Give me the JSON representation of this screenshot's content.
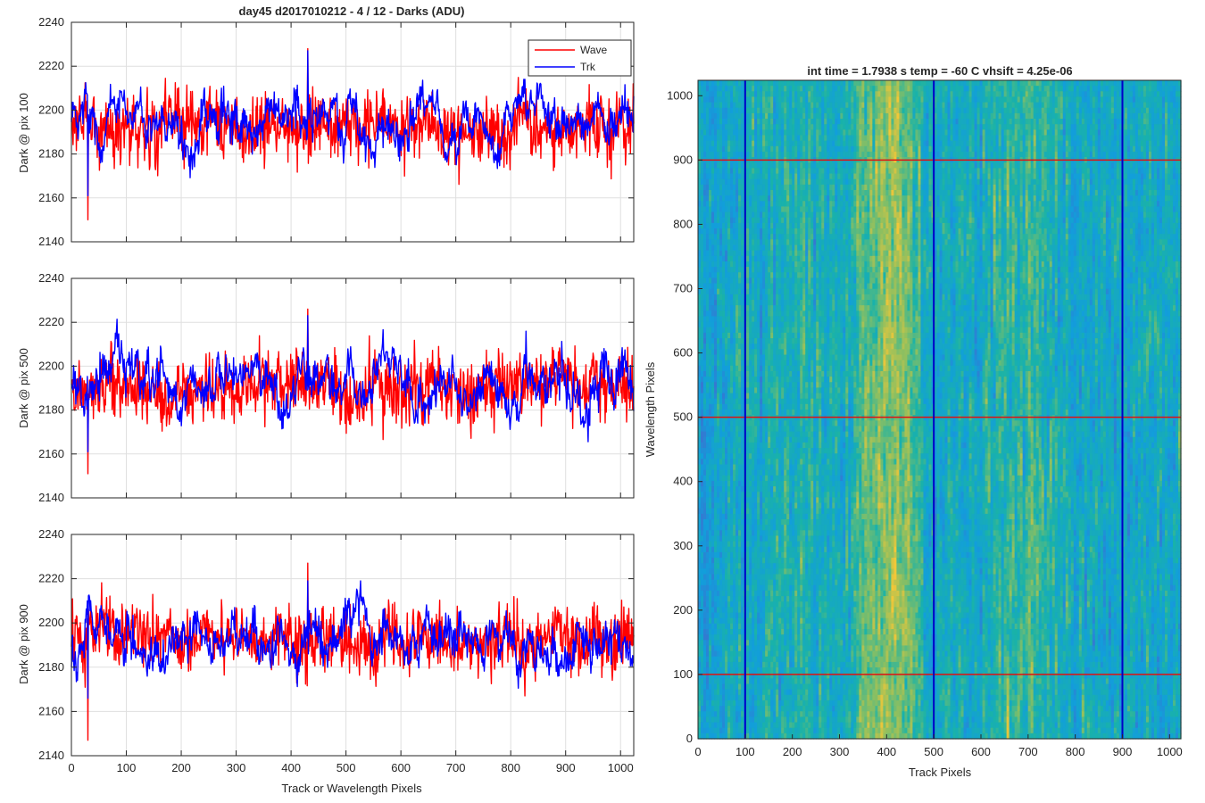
{
  "figure": {
    "title": "day45 d2017010212 - 4 / 12 - Darks (ADU)",
    "colors": {
      "wave": "#ff0000",
      "trk": "#0000ff",
      "axis": "#262626",
      "grid": "#dfdfdf"
    }
  },
  "chart_data": [
    {
      "type": "line",
      "id": "pix100",
      "title": "day45 d2017010212 - 4 / 12 - Darks (ADU)",
      "xlabel": "",
      "ylabel": "Dark @ pix 100",
      "xlim": [
        0,
        1024
      ],
      "ylim": [
        2140,
        2240
      ],
      "xticks": [
        0,
        100,
        200,
        300,
        400,
        500,
        600,
        700,
        800,
        900,
        1000
      ],
      "yticks": [
        2140,
        2160,
        2180,
        2200,
        2220,
        2240
      ],
      "grid": true,
      "legend": {
        "placement": "top-right",
        "entries": [
          "Wave",
          "Trk"
        ]
      },
      "series": [
        {
          "name": "Wave",
          "color": "#ff0000",
          "mean": 2193,
          "noise": 9,
          "wander": 2,
          "min": 2150,
          "max": 2228,
          "n": 1024
        },
        {
          "name": "Trk",
          "color": "#0000ff",
          "mean": 2195,
          "noise": 4,
          "wander": 7,
          "min": 2161,
          "max": 2227,
          "n": 1024
        }
      ]
    },
    {
      "type": "line",
      "id": "pix500",
      "title": "",
      "xlabel": "",
      "ylabel": "Dark @ pix 500",
      "xlim": [
        0,
        1024
      ],
      "ylim": [
        2140,
        2240
      ],
      "xticks": [
        0,
        100,
        200,
        300,
        400,
        500,
        600,
        700,
        800,
        900,
        1000
      ],
      "yticks": [
        2140,
        2160,
        2180,
        2200,
        2220,
        2240
      ],
      "grid": true,
      "series": [
        {
          "name": "Wave",
          "color": "#ff0000",
          "mean": 2190,
          "noise": 9,
          "wander": 3,
          "min": 2151,
          "max": 2226,
          "n": 1024
        },
        {
          "name": "Trk",
          "color": "#0000ff",
          "mean": 2192,
          "noise": 4,
          "wander": 8,
          "min": 2161,
          "max": 2223,
          "n": 1024
        }
      ]
    },
    {
      "type": "line",
      "id": "pix900",
      "title": "",
      "xlabel": "Track or Wavelength Pixels",
      "ylabel": "Dark @ pix 900",
      "xlim": [
        0,
        1024
      ],
      "ylim": [
        2140,
        2240
      ],
      "xticks": [
        0,
        100,
        200,
        300,
        400,
        500,
        600,
        700,
        800,
        900,
        1000
      ],
      "yticks": [
        2140,
        2160,
        2180,
        2200,
        2220,
        2240
      ],
      "grid": true,
      "series": [
        {
          "name": "Wave",
          "color": "#ff0000",
          "mean": 2192,
          "noise": 9,
          "wander": 3,
          "min": 2147,
          "max": 2227,
          "n": 1024
        },
        {
          "name": "Trk",
          "color": "#0000ff",
          "mean": 2190,
          "noise": 4,
          "wander": 7,
          "min": 2166,
          "max": 2219,
          "n": 1024
        }
      ]
    },
    {
      "type": "heatmap",
      "id": "dark-frame",
      "title": "int time = 1.7938 s    temp = -60 C    vhsift = 4.25e-06",
      "xlabel": "Track Pixels",
      "ylabel": "Wavelength Pixels",
      "xlim": [
        0,
        1024
      ],
      "ylim": [
        0,
        1024
      ],
      "xticks": [
        0,
        100,
        200,
        300,
        400,
        500,
        600,
        700,
        800,
        900,
        1000
      ],
      "yticks": [
        0,
        100,
        200,
        300,
        400,
        500,
        600,
        700,
        800,
        900,
        1000
      ],
      "colormap": "parula",
      "bright_bands": [
        {
          "track_from": 330,
          "track_to": 470,
          "strength": 0.35
        },
        {
          "track_from": 160,
          "track_to": 240,
          "strength": 0.12
        },
        {
          "track_from": 620,
          "track_to": 760,
          "strength": 0.18
        }
      ],
      "marker_lines": {
        "vertical_track_pixels": [
          100,
          500,
          900
        ],
        "vertical_color": "#0000c8",
        "horizontal_wavelength_pixels": [
          100,
          500,
          900
        ],
        "horizontal_color": "#e01010"
      }
    }
  ]
}
